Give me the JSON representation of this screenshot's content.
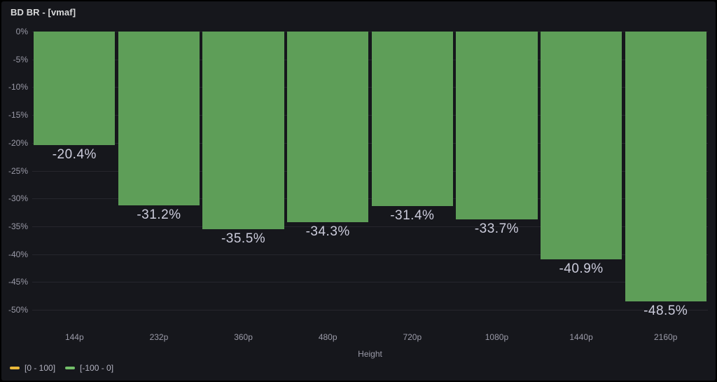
{
  "panel": {
    "title": "BD BR - [vmaf]"
  },
  "colors": {
    "background": "#16171c",
    "bar_green": "#5e9e58",
    "legend_yellow": "#eab839",
    "legend_green": "#73bf69",
    "value_label_text": "#ccccdc",
    "axis_text": "rgba(204,204,220,0.72)",
    "grid": "rgba(204,204,220,0.09)"
  },
  "legend": {
    "items": [
      {
        "label": "[0 - 100]",
        "color": "#eab839"
      },
      {
        "label": "[-100 - 0]",
        "color": "#73bf69"
      }
    ]
  },
  "chart_data": {
    "type": "bar",
    "orientation": "vertical",
    "title": "BD BR - [vmaf]",
    "categories": [
      "144p",
      "232p",
      "360p",
      "480p",
      "720p",
      "1080p",
      "1440p",
      "2160p"
    ],
    "values": [
      -20.4,
      -31.2,
      -35.5,
      -34.3,
      -31.4,
      -33.7,
      -40.9,
      -48.5
    ],
    "value_labels": [
      "-20.4%",
      "-31.2%",
      "-35.5%",
      "-34.3%",
      "-31.4%",
      "-33.7%",
      "-40.9%",
      "-48.5%"
    ],
    "series_name": "[-100 - 0]",
    "bar_color": "#5e9e58",
    "xlabel": "Height",
    "ylabel": "",
    "ylim": [
      -50,
      0
    ],
    "ytick_step": -5,
    "yticks": [
      "0%",
      "-5%",
      "-10%",
      "-15%",
      "-20%",
      "-25%",
      "-30%",
      "-35%",
      "-40%",
      "-45%",
      "-50%"
    ],
    "grid": "horizontal",
    "legend_position": "bottom-left"
  }
}
